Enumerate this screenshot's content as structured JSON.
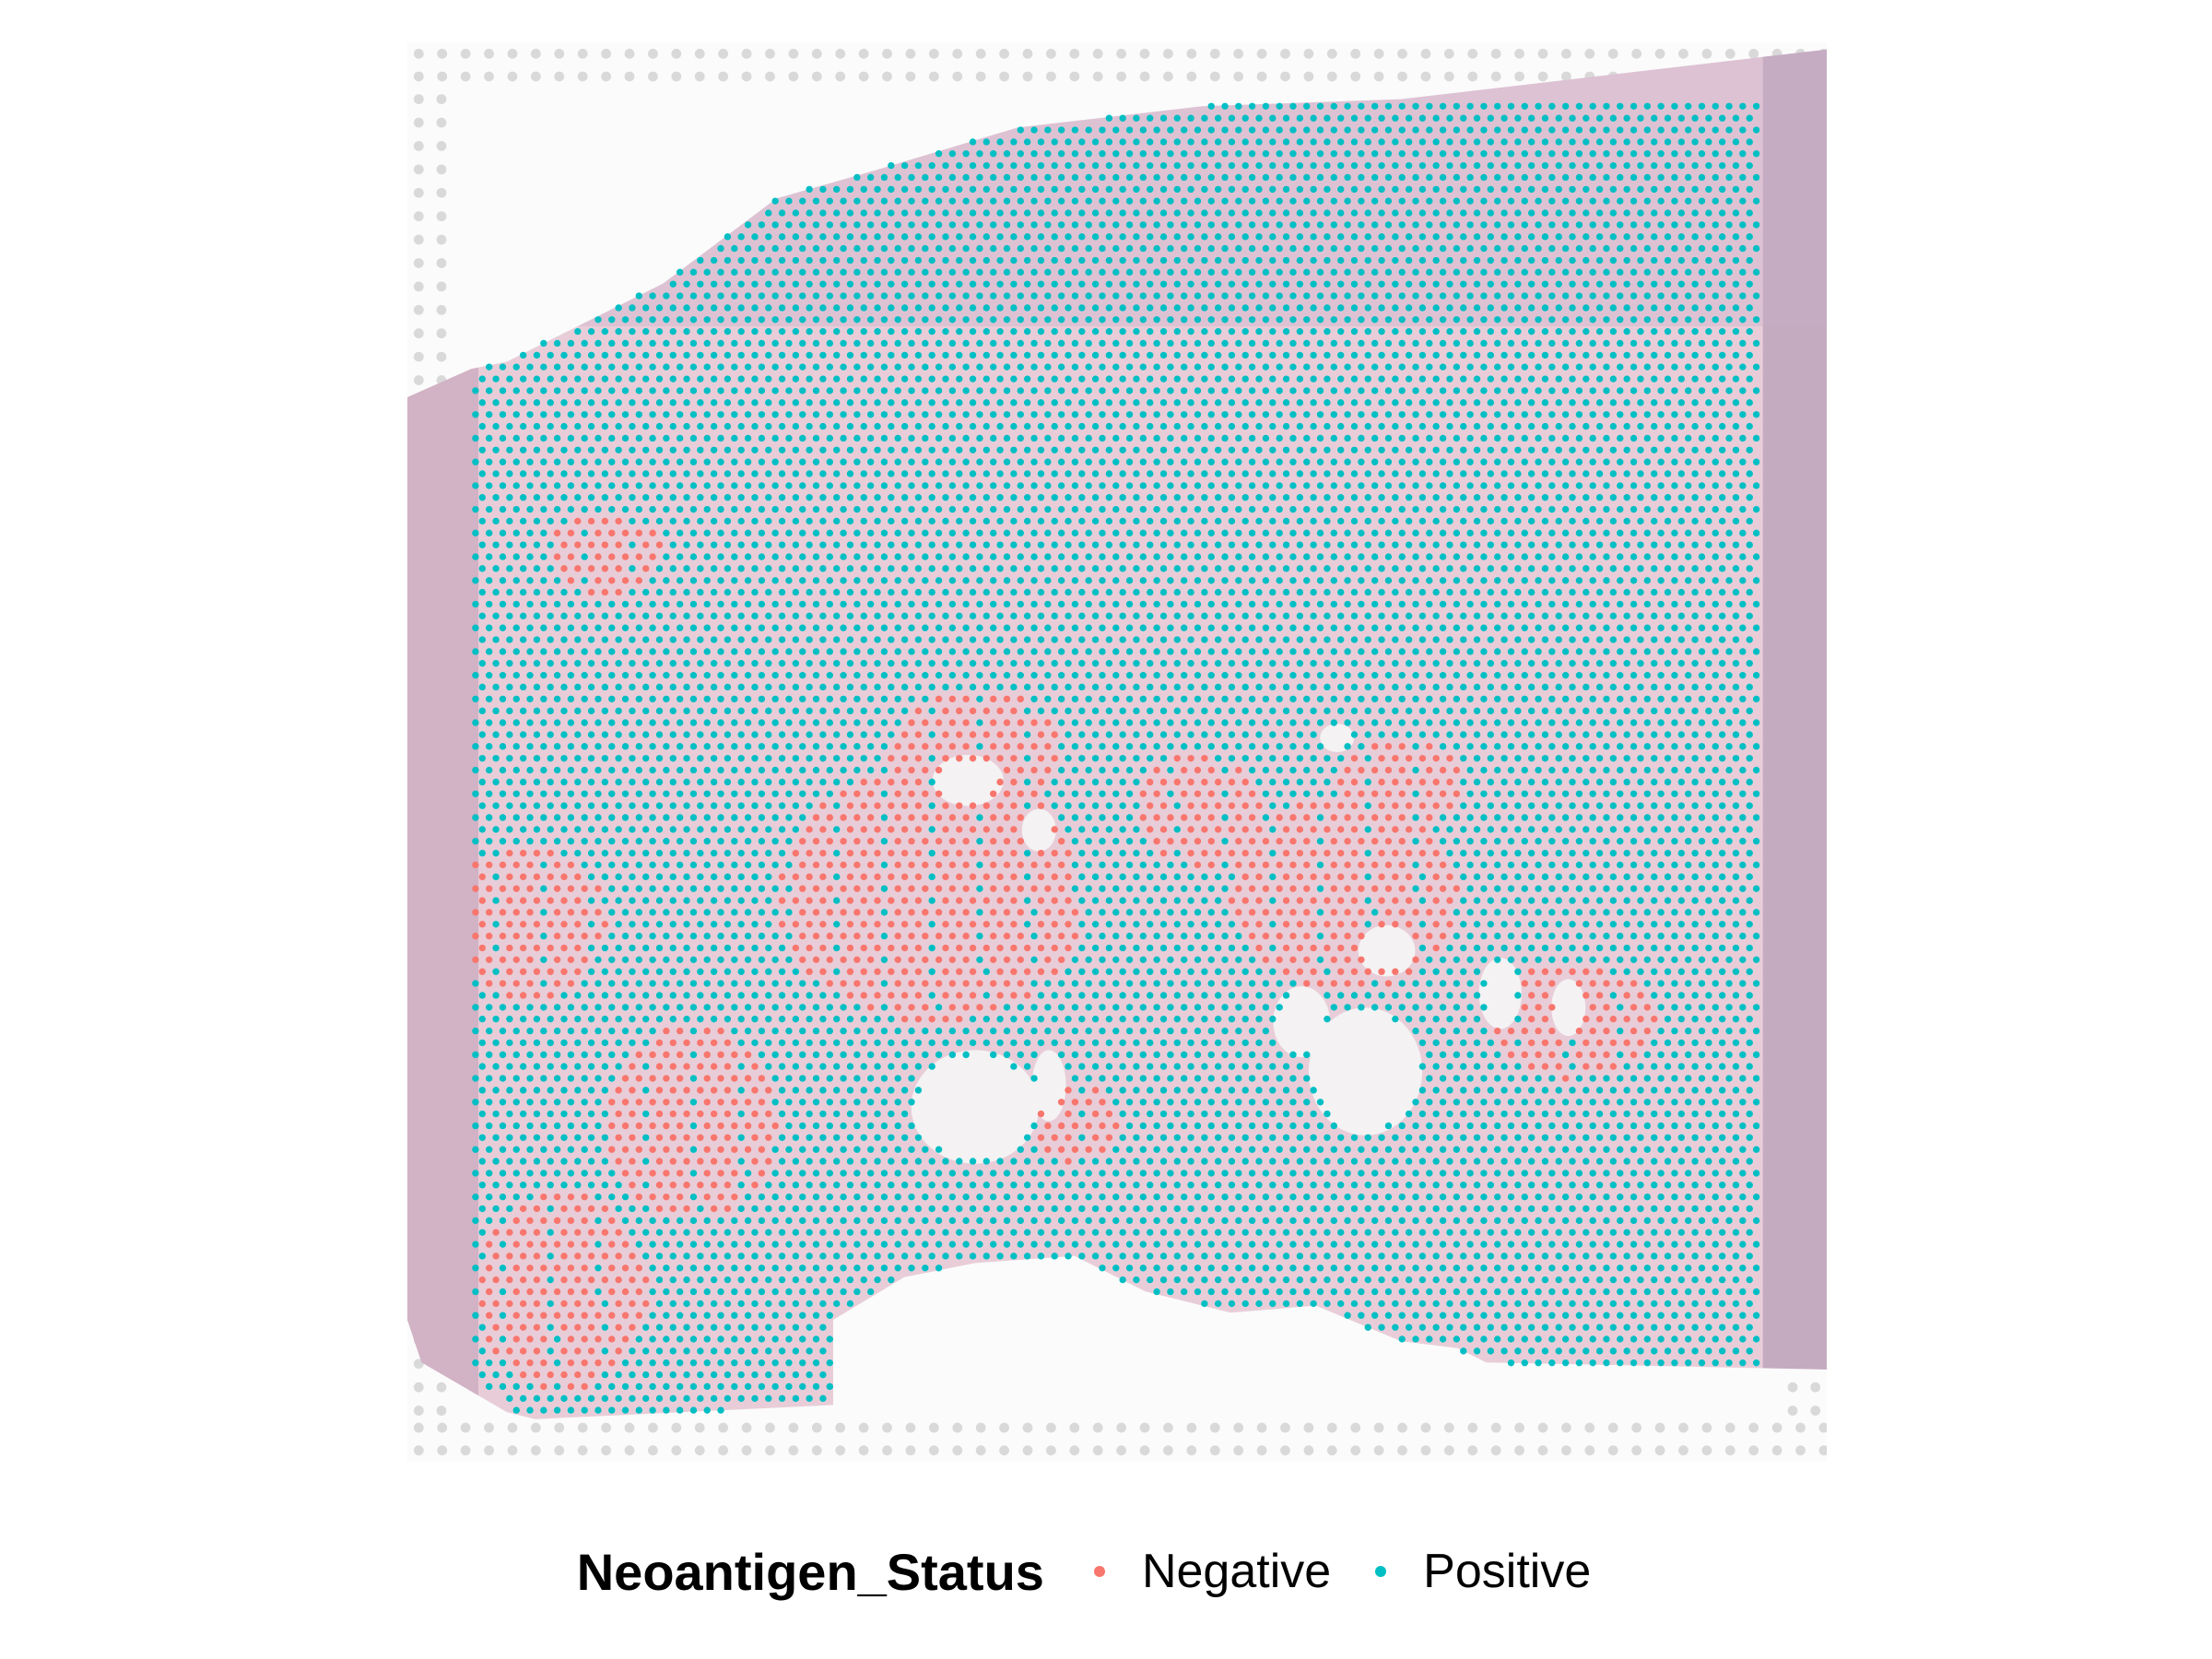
{
  "legend": {
    "title": "Neoantigen_Status",
    "items": [
      {
        "label": "Negative",
        "color": "#F8766D"
      },
      {
        "label": "Positive",
        "color": "#00BFC4"
      }
    ]
  },
  "colors": {
    "negative": "#F8766D",
    "positive": "#00BFC4",
    "tissue": "#e6c9d4",
    "tissue_dark": "#b89bb3",
    "background_spot": "#d9d9d9"
  }
}
